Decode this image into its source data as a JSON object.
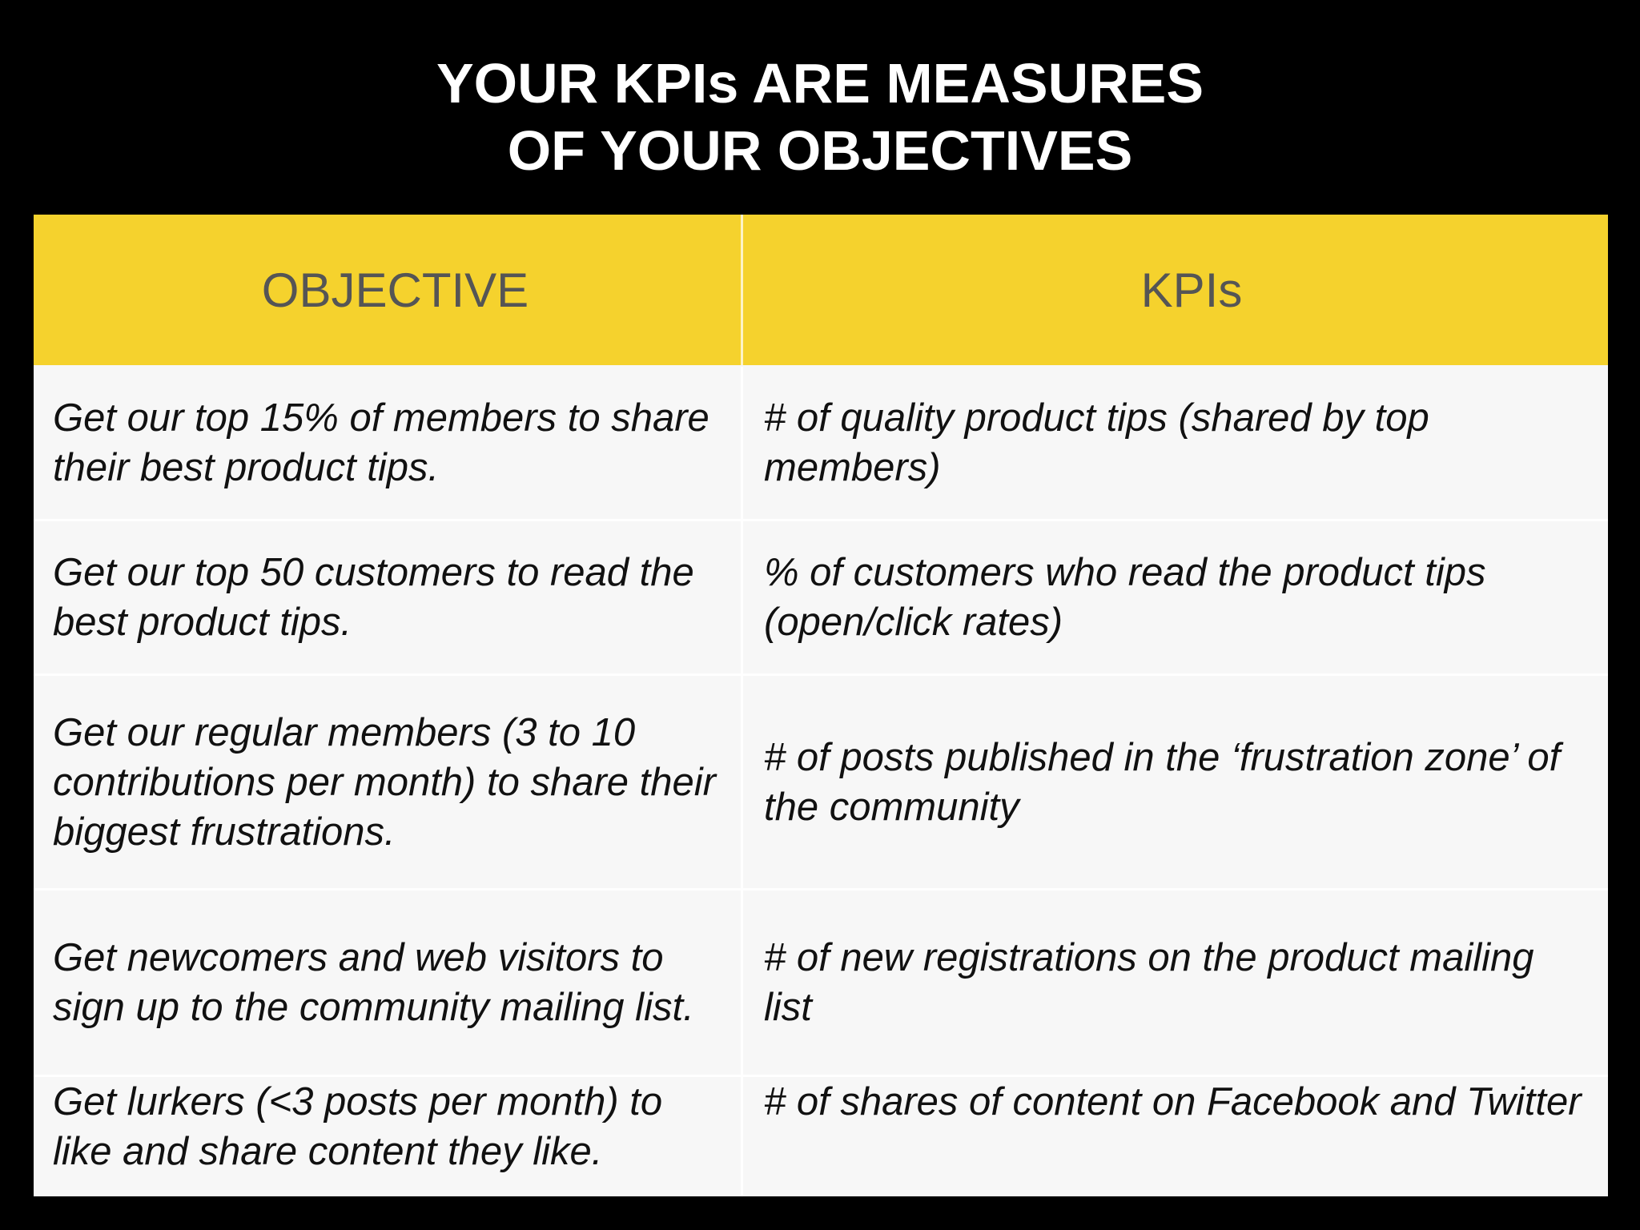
{
  "title": {
    "line1": "YOUR KPIs ARE MEASURES",
    "line2": "OF YOUR OBJECTIVES"
  },
  "table": {
    "headers": {
      "objective": "OBJECTIVE",
      "kpis": "KPIs"
    },
    "rows": [
      {
        "objective": "Get our top 15% of members to share their best product tips.",
        "kpi": "# of quality product tips (shared by top members)"
      },
      {
        "objective": "Get our top 50 customers to read the best product tips.",
        "kpi": "% of customers who read the product tips (open/click rates)"
      },
      {
        "objective": "Get our regular members (3 to 10 contributions per month) to share their biggest frustrations.",
        "kpi": "# of posts published in the ‘frustration zone’ of the community"
      },
      {
        "objective": "Get newcomers and web visitors to sign up to the community mailing list.",
        "kpi": "# of new registrations on the product mailing list"
      },
      {
        "objective": "Get lurkers (<3 posts per month) to like and share content they like.",
        "kpi": "# of shares of content on Facebook and Twitter"
      }
    ]
  },
  "colors": {
    "background": "#000000",
    "header_fill": "#f5d22d",
    "header_text": "#555555",
    "body_fill": "#f7f7f7",
    "body_text": "#111111"
  }
}
